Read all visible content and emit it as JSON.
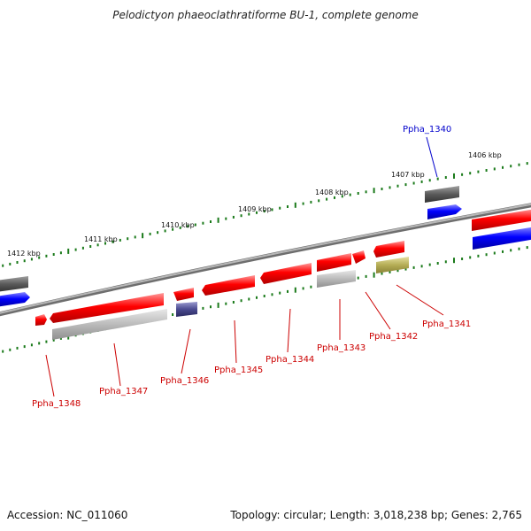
{
  "title": "Pelodictyon phaeoclathratiforme BU-1, complete genome",
  "footer": {
    "accession": "Accession: NC_011060",
    "summary": "Topology: circular; Length: 3,018,238 bp; Genes: 2,765"
  },
  "colors": {
    "cds_forward": "#ff0000",
    "cds_reverse": "#0000ff",
    "label_reverse": "#0000cc",
    "label_forward": "#cc0000",
    "tick": "#1a7a1a",
    "backbone": "#8c8c8c"
  },
  "scale_labels": [
    "1406 kbp",
    "1407 kbp",
    "1408 kbp",
    "1409 kbp",
    "1410 kbp",
    "1411 kbp",
    "1412 kbp"
  ],
  "gene_labels": [
    {
      "name": "Ppha_1340",
      "strand": "reverse"
    },
    {
      "name": "Ppha_1341",
      "strand": "forward"
    },
    {
      "name": "Ppha_1342",
      "strand": "forward"
    },
    {
      "name": "Ppha_1343",
      "strand": "forward"
    },
    {
      "name": "Ppha_1344",
      "strand": "forward"
    },
    {
      "name": "Ppha_1345",
      "strand": "forward"
    },
    {
      "name": "Ppha_1346",
      "strand": "forward"
    },
    {
      "name": "Ppha_1347",
      "strand": "forward"
    },
    {
      "name": "Ppha_1348",
      "strand": "forward"
    }
  ]
}
